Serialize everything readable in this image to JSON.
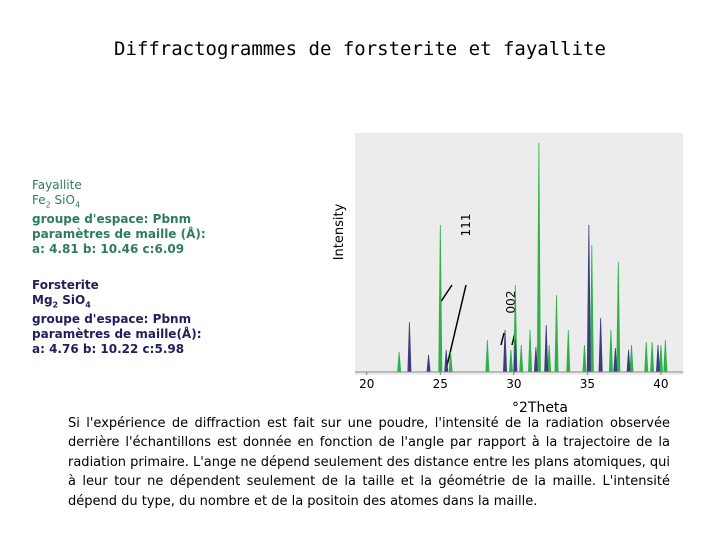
{
  "title": "Diffractogrammes de forsterite et fayallite",
  "fayalite": {
    "name": "Fayallite",
    "formula": [
      "Fe",
      "2",
      " SiO",
      "4"
    ],
    "space_group": "groupe d'espace: Pbnm",
    "params_label": "paramètres de maille (Å):",
    "params": "a: 4.81 b: 10.46 c:6.09"
  },
  "forsterite": {
    "name": "Forsterite",
    "formula": [
      "Mg",
      "2",
      " SiO",
      "4"
    ],
    "space_group": "groupe d'espace: Pbnm",
    "params_label": "paramètres de maille(Å):",
    "params": "a: 4.76 b: 10.22 c:5.98"
  },
  "annotations": {
    "peak_111": "111",
    "peak_002": "002"
  },
  "paragraph": "Si l'expérience de diffraction est fait sur une poudre, l'intensité de la radiation observée derrière l'échantillons est donnée en fonction de l'angle par rapport à la trajectoire de la radiation primaire. L'ange ne dépend seulement des distance entre les plans atomiques, qui à leur tour ne dépendent seulement de la taille et la géométrie de la maille. L'intensité dépend du type, du nombre et de la positoin des atomes dans la maille.",
  "chart_data": {
    "type": "peaks",
    "x_label": "°2Theta",
    "y_label": "Intensity",
    "xlim": [
      19.2,
      41.5
    ],
    "xticks": [
      20,
      25,
      30,
      35,
      40
    ],
    "ylim": [
      0,
      100
    ],
    "series": [
      {
        "color": "#2fb14a",
        "x": [
          22.2,
          25.0,
          25.7,
          28.2,
          29.8,
          30.1,
          30.5,
          31.1,
          31.7,
          32.4,
          32.9,
          33.7,
          34.8,
          35.3,
          35.9,
          36.6,
          37.1,
          38.0,
          39.0,
          39.4,
          40.0,
          40.3
        ],
        "values": [
          8.4,
          62,
          8.4,
          13.5,
          9.3,
          36.7,
          11.4,
          17.7,
          96.6,
          11.4,
          32.5,
          17.7,
          11.4,
          53.6,
          17.7,
          17.7,
          46.4,
          11.4,
          12.7,
          12.7,
          11.4,
          13.5
        ]
      },
      {
        "color": "#3c3c80",
        "x": [
          22.9,
          24.2,
          25.4,
          29.4,
          30.1,
          31.5,
          32.2,
          35.1,
          35.9,
          36.9,
          37.8,
          39.8
        ],
        "values": [
          21,
          7.2,
          9.3,
          17.7,
          13.5,
          10.5,
          19.8,
          62,
          22.8,
          10.1,
          9.3,
          11.4
        ]
      }
    ]
  }
}
